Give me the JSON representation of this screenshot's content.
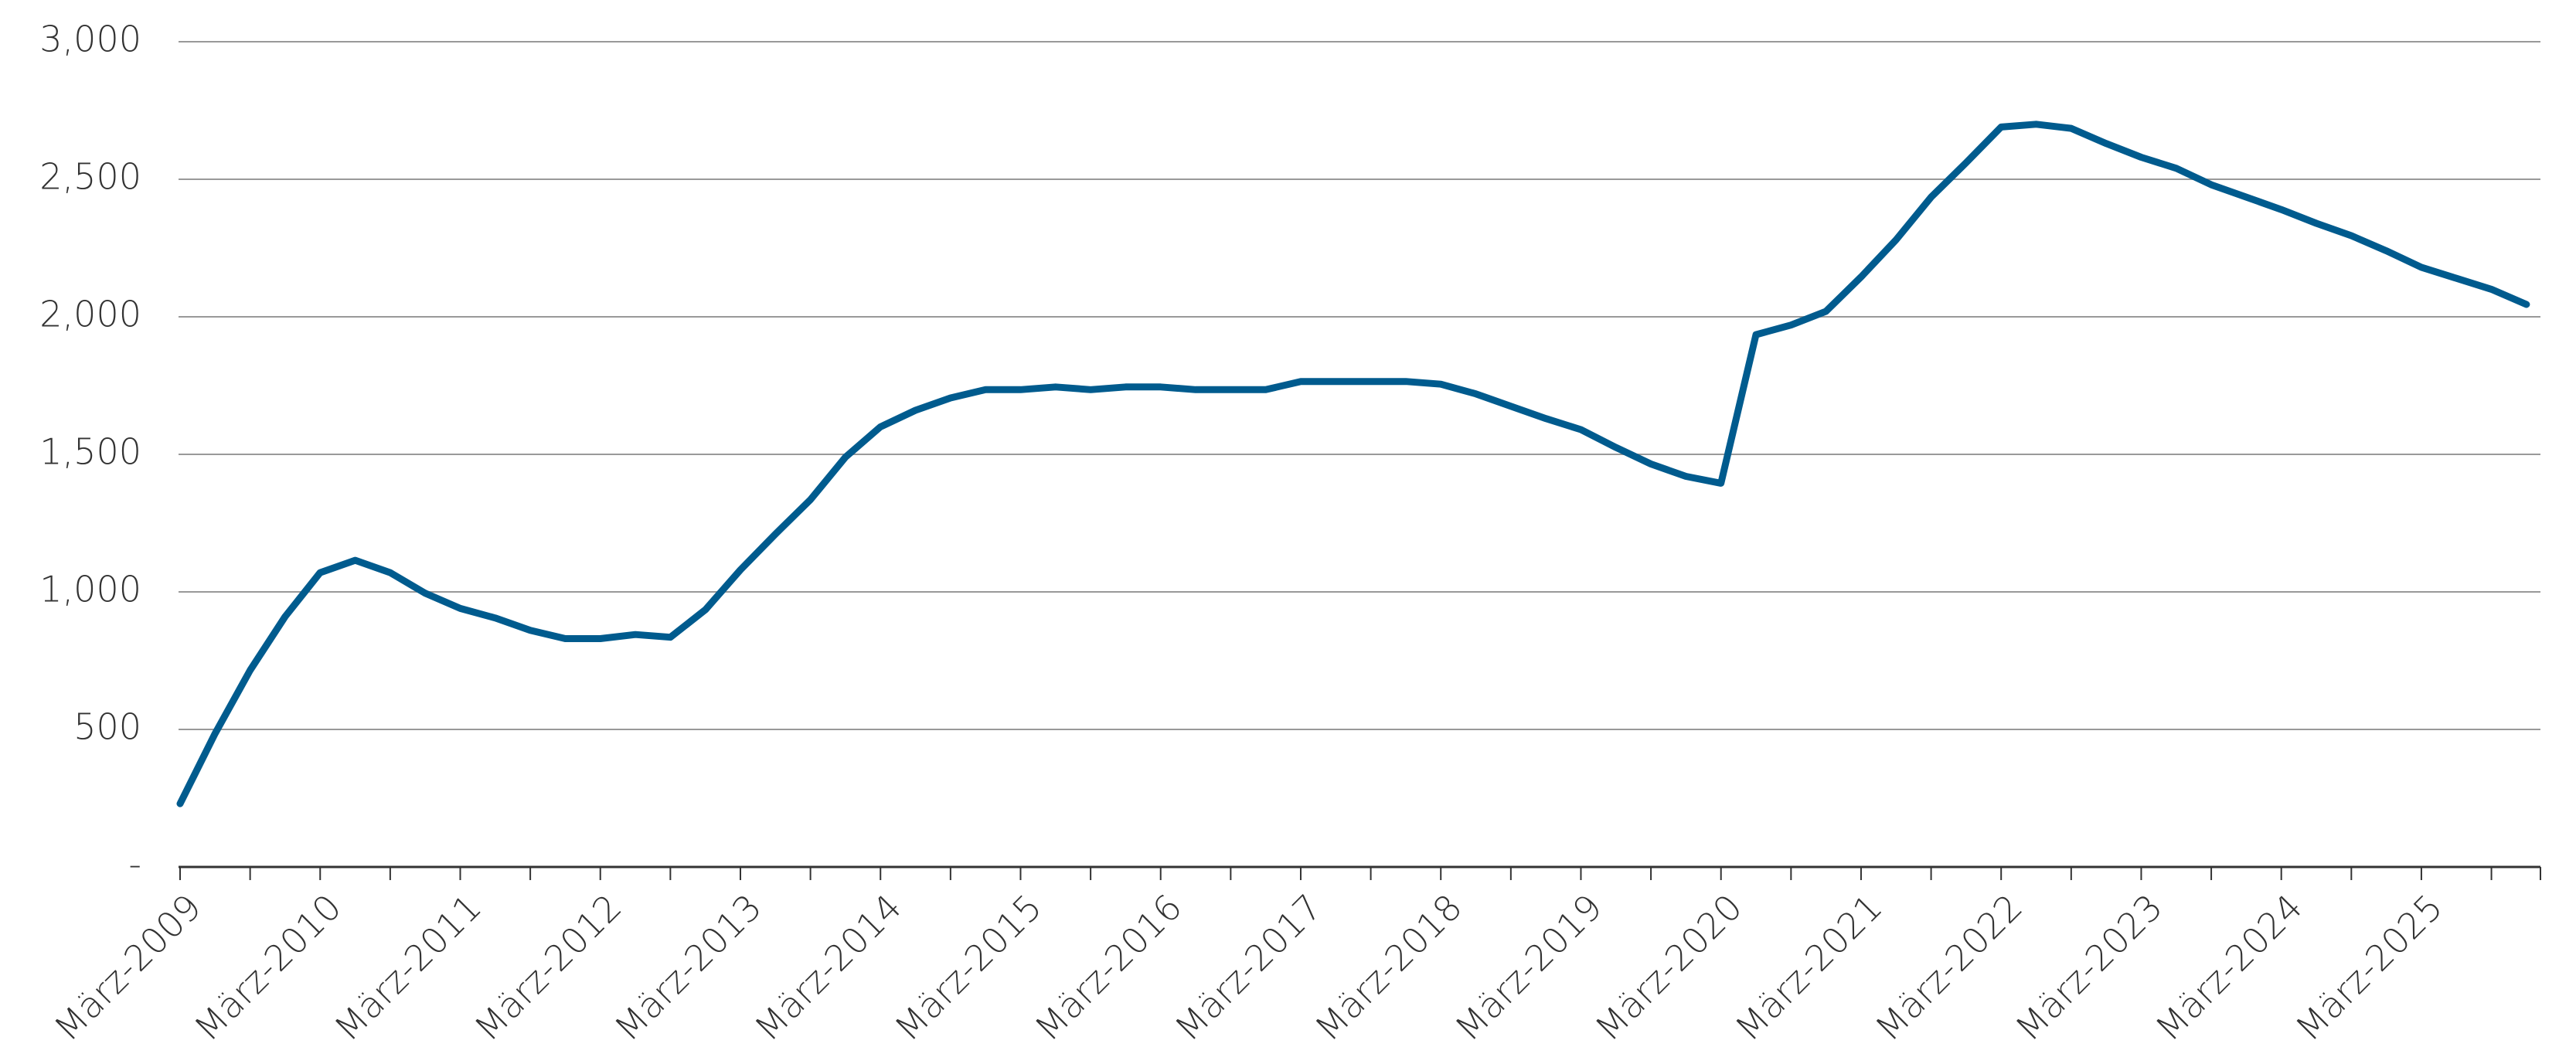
{
  "chart_data": {
    "type": "line",
    "categories": [
      "März-2009",
      null,
      null,
      null,
      "März-2010",
      null,
      null,
      null,
      "März-2011",
      null,
      null,
      null,
      "März-2012",
      null,
      null,
      null,
      "März-2013",
      null,
      null,
      null,
      "März-2014",
      null,
      null,
      null,
      "März-2015",
      null,
      null,
      null,
      "März-2016",
      null,
      null,
      null,
      "März-2017",
      null,
      null,
      null,
      "März-2018",
      null,
      null,
      null,
      "März-2019",
      null,
      null,
      null,
      "März-2020",
      null,
      null,
      null,
      "März-2021",
      null,
      null,
      null,
      "März-2022",
      null,
      null,
      null,
      "März-2023",
      null,
      null,
      null,
      "März-2024",
      null,
      null,
      null,
      "März-2025",
      null,
      null,
      null
    ],
    "series": [
      {
        "name": null,
        "color": "#005b8e",
        "values": [
          230,
          485,
          715,
          910,
          1070,
          1115,
          1070,
          995,
          940,
          905,
          860,
          830,
          830,
          845,
          835,
          935,
          1080,
          1210,
          1335,
          1490,
          1600,
          1660,
          1705,
          1735,
          1735,
          1745,
          1735,
          1745,
          1745,
          1735,
          1735,
          1735,
          1765,
          1765,
          1765,
          1765,
          1755,
          1720,
          1675,
          1630,
          1590,
          1525,
          1465,
          1420,
          1395,
          1935,
          1970,
          2020,
          2145,
          2280,
          2435,
          2560,
          2690,
          2700,
          2685,
          2630,
          2580,
          2540,
          2480,
          2435,
          2390,
          2340,
          2295,
          2240,
          2180,
          2140,
          2100,
          2045
        ]
      }
    ],
    "ylim": [
      0,
      3000
    ],
    "yticks": [
      {
        "value": 0,
        "label": "-"
      },
      500,
      {
        "value": 1000,
        "label": "1,000"
      },
      {
        "value": 1500,
        "label": "1,500"
      },
      {
        "value": 2000,
        "label": "2,000"
      },
      {
        "value": 2500,
        "label": "2,500"
      },
      {
        "value": 3000,
        "label": "3,000"
      }
    ],
    "grid": true
  }
}
